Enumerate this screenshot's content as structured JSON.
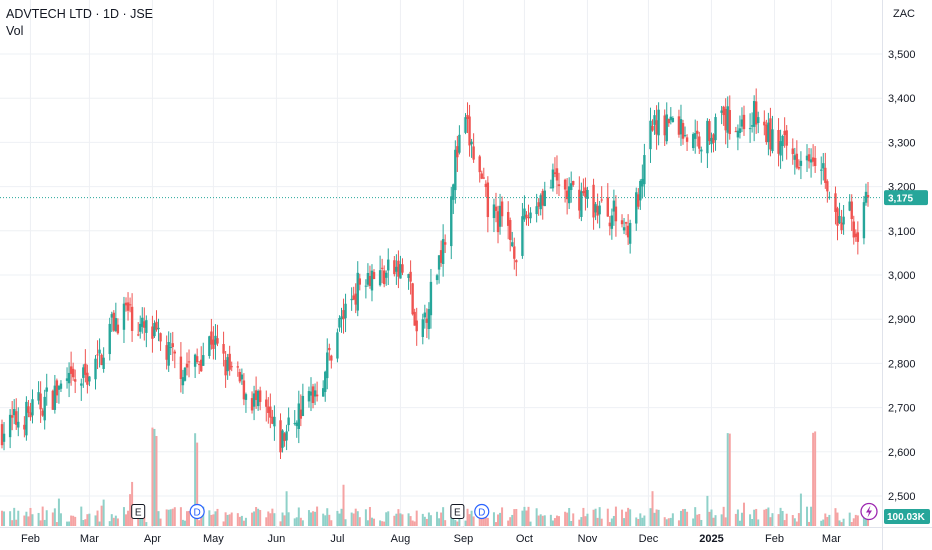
{
  "header": {
    "title": "ADVTECH LTD · 1D · JSE",
    "volume_label": "Vol",
    "currency": "ZAC"
  },
  "colors": {
    "up": "#26a69a",
    "down": "#ef5350",
    "up_volume": "#8fd1c9",
    "down_volume": "#f5a3a3",
    "grid": "#eef0f4",
    "last_price_line": "#26a69a",
    "volume_badge": "#26a69a",
    "dividend": "#2962ff",
    "earnings": "#131722",
    "alert_icon": "#9c27b0"
  },
  "chart_data": {
    "type": "candlestick",
    "symbol": "ADVTECH LTD",
    "interval": "1D",
    "exchange": "JSE",
    "currency": "ZAC",
    "y_ticks": [
      2500,
      2600,
      2700,
      2800,
      2900,
      3000,
      3100,
      3200,
      3300,
      3400,
      3500
    ],
    "y_tick_labels": [
      "2,500",
      "2,600",
      "2,700",
      "2,800",
      "2,900",
      "3,000",
      "3,100",
      "3,200",
      "3,300",
      "3,400",
      "3,500"
    ],
    "ylim": [
      2460,
      3560
    ],
    "x_ticks": [
      {
        "label": "Feb",
        "date": "2024-02-01"
      },
      {
        "label": "Mar",
        "date": "2024-03-01"
      },
      {
        "label": "Apr",
        "date": "2024-04-01"
      },
      {
        "label": "May",
        "date": "2024-05-01"
      },
      {
        "label": "Jun",
        "date": "2024-06-01"
      },
      {
        "label": "Jul",
        "date": "2024-07-01"
      },
      {
        "label": "Aug",
        "date": "2024-08-01"
      },
      {
        "label": "Sep",
        "date": "2024-09-01"
      },
      {
        "label": "Oct",
        "date": "2024-10-01"
      },
      {
        "label": "Nov",
        "date": "2024-11-01"
      },
      {
        "label": "Dec",
        "date": "2024-12-01"
      },
      {
        "label": "2025",
        "date": "2025-01-01",
        "bold": true
      },
      {
        "label": "Feb",
        "date": "2025-02-01"
      },
      {
        "label": "Mar",
        "date": "2025-03-01"
      }
    ],
    "x_range": [
      "2024-01-18",
      "2025-03-19"
    ],
    "last_price": 3175,
    "last_price_label": "3,175",
    "last_volume_label": "100.03K",
    "close_path": [
      [
        "2024-01-18",
        2650
      ],
      [
        "2024-02-01",
        2690
      ],
      [
        "2024-02-15",
        2740
      ],
      [
        "2024-02-26",
        2760
      ],
      [
        "2024-03-05",
        2800
      ],
      [
        "2024-03-12",
        2890
      ],
      [
        "2024-03-19",
        2920
      ],
      [
        "2024-03-26",
        2880
      ],
      [
        "2024-04-02",
        2860
      ],
      [
        "2024-04-09",
        2820
      ],
      [
        "2024-04-16",
        2790
      ],
      [
        "2024-04-23",
        2800
      ],
      [
        "2024-04-30",
        2860
      ],
      [
        "2024-05-06",
        2800
      ],
      [
        "2024-05-13",
        2760
      ],
      [
        "2024-05-20",
        2720
      ],
      [
        "2024-05-27",
        2680
      ],
      [
        "2024-06-03",
        2620
      ],
      [
        "2024-06-10",
        2680
      ],
      [
        "2024-06-17",
        2720
      ],
      [
        "2024-06-24",
        2770
      ],
      [
        "2024-07-01",
        2880
      ],
      [
        "2024-07-08",
        2950
      ],
      [
        "2024-07-15",
        3010
      ],
      [
        "2024-07-22",
        3000
      ],
      [
        "2024-07-29",
        3010
      ],
      [
        "2024-08-05",
        3000
      ],
      [
        "2024-08-09",
        2840
      ],
      [
        "2024-08-16",
        2960
      ],
      [
        "2024-08-23",
        3100
      ],
      [
        "2024-08-28",
        3260
      ],
      [
        "2024-09-02",
        3340
      ],
      [
        "2024-09-06",
        3270
      ],
      [
        "2024-09-13",
        3150
      ],
      [
        "2024-09-20",
        3120
      ],
      [
        "2024-09-27",
        3060
      ],
      [
        "2024-10-02",
        3130
      ],
      [
        "2024-10-09",
        3180
      ],
      [
        "2024-10-16",
        3210
      ],
      [
        "2024-10-23",
        3180
      ],
      [
        "2024-10-30",
        3180
      ],
      [
        "2024-11-06",
        3150
      ],
      [
        "2024-11-13",
        3140
      ],
      [
        "2024-11-20",
        3110
      ],
      [
        "2024-11-27",
        3180
      ],
      [
        "2024-12-02",
        3330
      ],
      [
        "2024-12-09",
        3350
      ],
      [
        "2024-12-16",
        3340
      ],
      [
        "2024-12-23",
        3300
      ],
      [
        "2025-01-01",
        3330
      ],
      [
        "2025-01-08",
        3350
      ],
      [
        "2025-01-15",
        3340
      ],
      [
        "2025-01-22",
        3360
      ],
      [
        "2025-01-28",
        3320
      ],
      [
        "2025-02-04",
        3290
      ],
      [
        "2025-02-11",
        3270
      ],
      [
        "2025-02-18",
        3290
      ],
      [
        "2025-02-24",
        3270
      ],
      [
        "2025-02-28",
        3160
      ],
      [
        "2025-03-05",
        3110
      ],
      [
        "2025-03-10",
        3140
      ],
      [
        "2025-03-14",
        3090
      ],
      [
        "2025-03-19",
        3175
      ]
    ],
    "volume_spikes": [
      {
        "date": "2024-04-02",
        "volume": "high"
      },
      {
        "date": "2024-04-22",
        "volume": "high"
      },
      {
        "date": "2025-01-10",
        "volume": "high"
      },
      {
        "date": "2025-02-21",
        "volume": "high"
      }
    ]
  },
  "events": [
    {
      "type": "earnings",
      "label": "E",
      "date": "2024-03-25"
    },
    {
      "type": "dividend",
      "label": "D",
      "date": "2024-04-23"
    },
    {
      "type": "earnings",
      "label": "E",
      "date": "2024-08-29"
    },
    {
      "type": "dividend",
      "label": "D",
      "date": "2024-09-10"
    }
  ]
}
